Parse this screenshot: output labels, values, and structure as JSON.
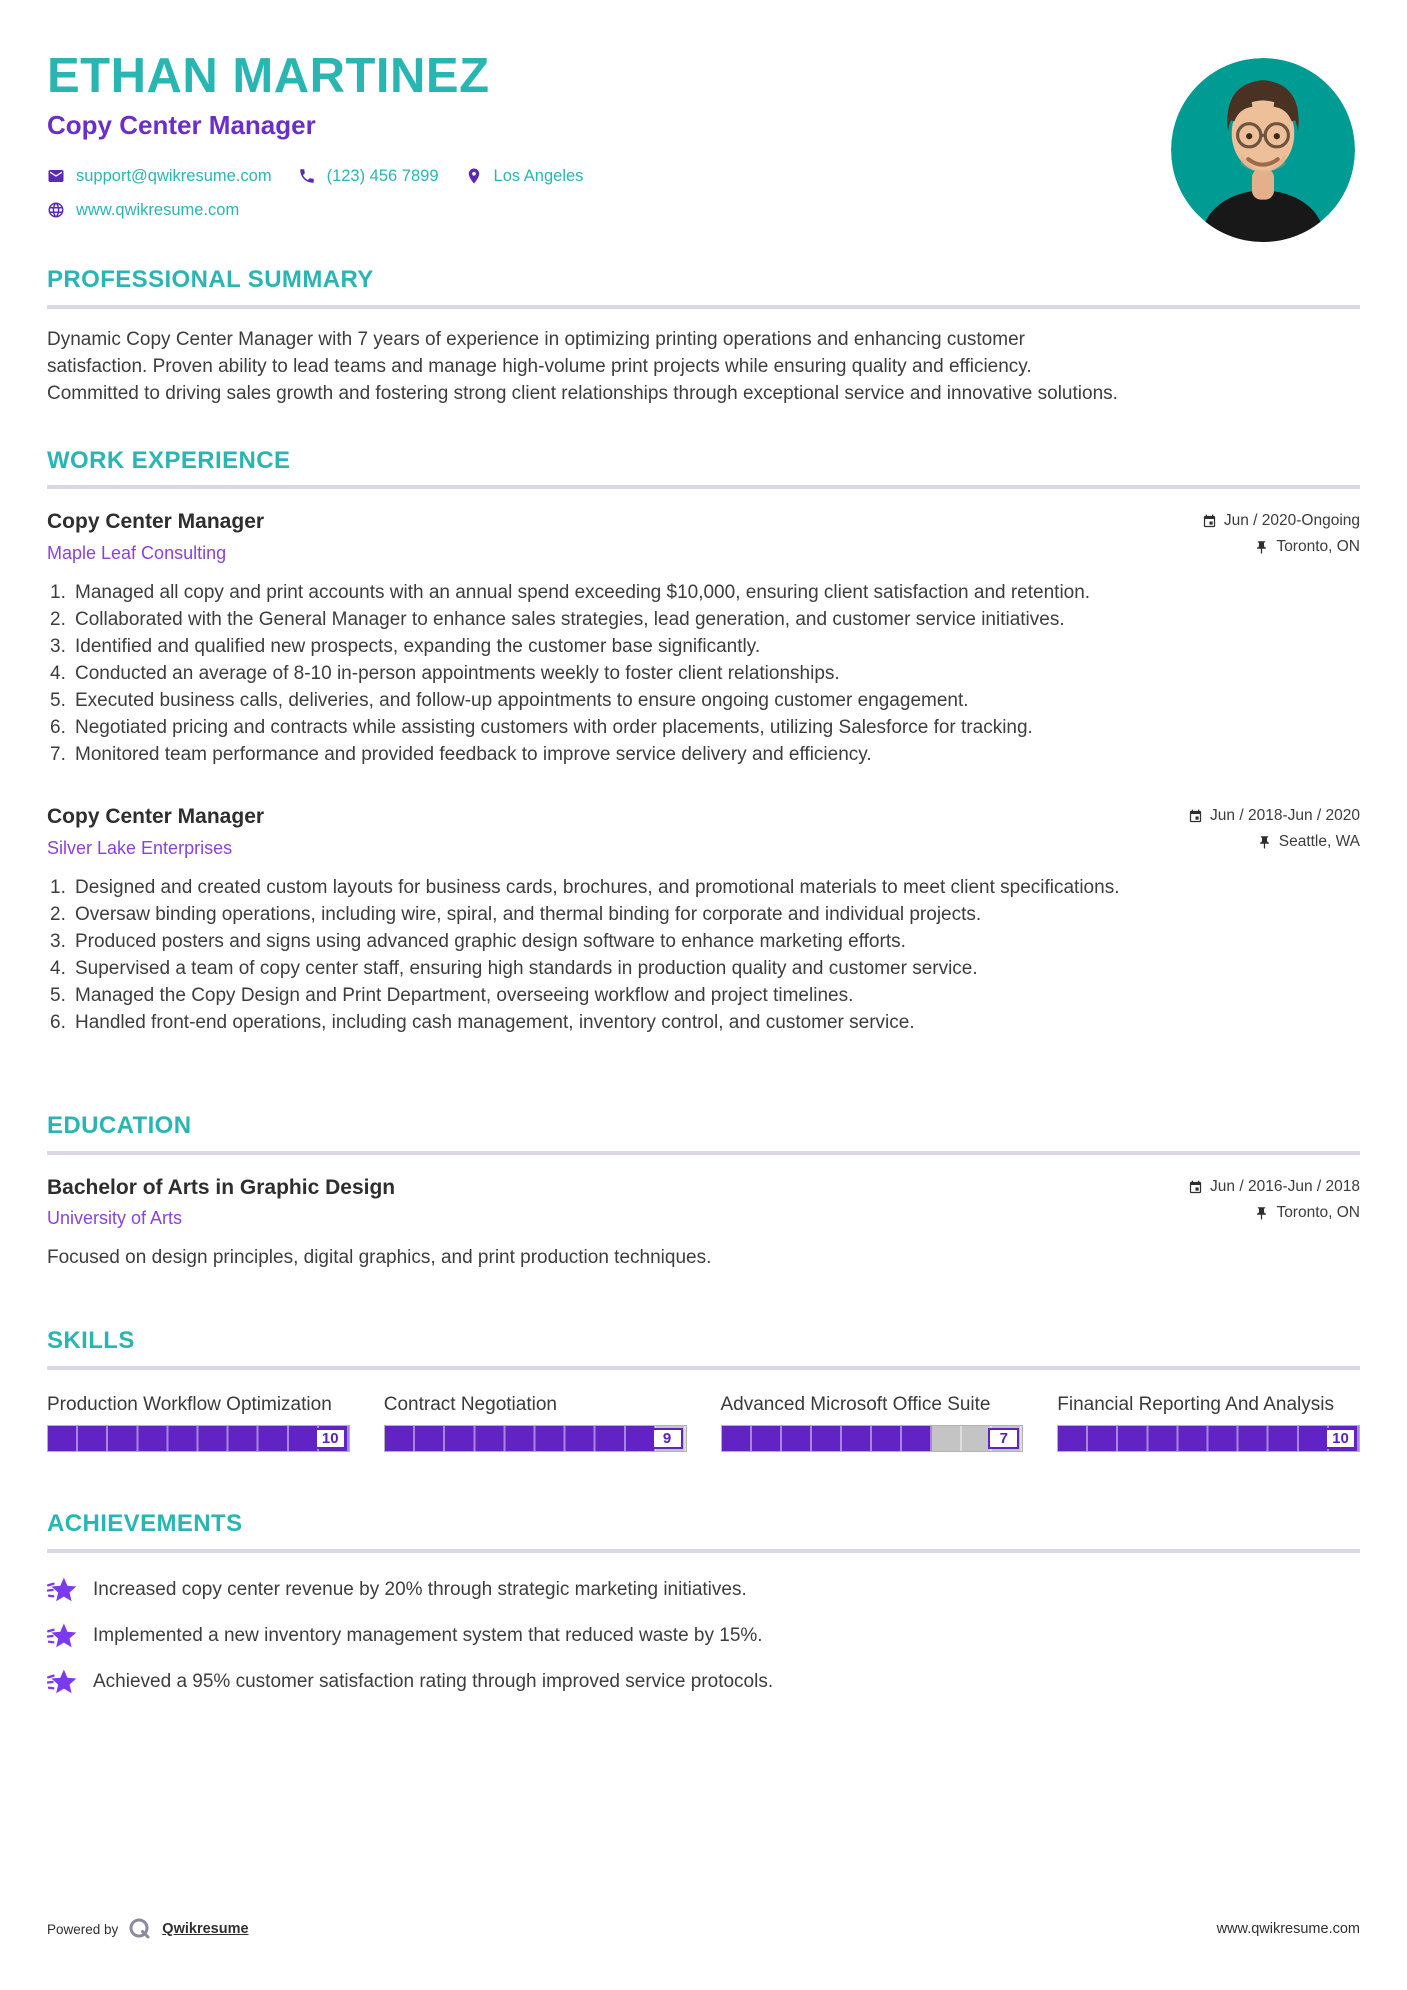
{
  "header": {
    "name": "ETHAN MARTINEZ",
    "title": "Copy Center Manager",
    "contact": {
      "email": "support@qwikresume.com",
      "phone": "(123) 456 7899",
      "location": "Los Angeles",
      "website": "www.qwikresume.com"
    }
  },
  "sections": {
    "summary": {
      "heading": "PROFESSIONAL SUMMARY",
      "text": "Dynamic Copy Center Manager with 7 years of experience in optimizing printing operations and enhancing customer satisfaction. Proven ability to lead teams and manage high-volume print projects while ensuring quality and efficiency. Committed to driving sales growth and fostering strong client relationships through exceptional service and innovative solutions."
    },
    "work": {
      "heading": "WORK EXPERIENCE",
      "jobs": [
        {
          "title": "Copy Center Manager",
          "company": "Maple Leaf Consulting",
          "dates": "Jun / 2020-Ongoing",
          "location": "Toronto, ON",
          "bullets": [
            "Managed all copy and print accounts with an annual spend exceeding $10,000, ensuring client satisfaction and retention.",
            "Collaborated with the General Manager to enhance sales strategies, lead generation, and customer service initiatives.",
            "Identified and qualified new prospects, expanding the customer base significantly.",
            "Conducted an average of 8-10 in-person appointments weekly to foster client relationships.",
            "Executed business calls, deliveries, and follow-up appointments to ensure ongoing customer engagement.",
            "Negotiated pricing and contracts while assisting customers with order placements, utilizing Salesforce for tracking.",
            "Monitored team performance and provided feedback to improve service delivery and efficiency."
          ]
        },
        {
          "title": "Copy Center Manager",
          "company": "Silver Lake Enterprises",
          "dates": "Jun / 2018-Jun / 2020",
          "location": "Seattle, WA",
          "bullets": [
            "Designed and created custom layouts for business cards, brochures, and promotional materials to meet client specifications.",
            "Oversaw binding operations, including wire, spiral, and thermal binding for corporate and individual projects.",
            "Produced posters and signs using advanced graphic design software to enhance marketing efforts.",
            "Supervised a team of copy center staff, ensuring high standards in production quality and customer service.",
            "Managed the Copy Design and Print Department, overseeing workflow and project timelines.",
            "Handled front-end operations, including cash management, inventory control, and customer service."
          ]
        }
      ]
    },
    "education": {
      "heading": "EDUCATION",
      "degree": "Bachelor of Arts in Graphic Design",
      "school": "University of Arts",
      "dates": "Jun / 2016-Jun / 2018",
      "location": "Toronto, ON",
      "description": "Focused on design principles, digital graphics, and print production techniques."
    },
    "skills": {
      "heading": "SKILLS",
      "max_level": 10,
      "items": [
        {
          "name": "Production Workflow Optimization",
          "level": 10
        },
        {
          "name": "Contract Negotiation",
          "level": 9
        },
        {
          "name": "Advanced Microsoft Office Suite",
          "level": 7
        },
        {
          "name": "Financial Reporting And Analysis",
          "level": 10
        }
      ]
    },
    "achievements": {
      "heading": "ACHIEVEMENTS",
      "items": [
        "Increased copy center revenue by 20% through strategic marketing initiatives.",
        "Implemented a new inventory management system that reduced waste by 15%.",
        "Achieved a 95% customer satisfaction rating through improved service protocols."
      ]
    }
  },
  "footer": {
    "powered_by": "Powered by",
    "brand": "Qwikresume",
    "website": "www.qwikresume.com"
  },
  "icons": {
    "email": "envelope-icon",
    "phone": "phone-icon",
    "location": "location-pin-icon",
    "website": "globe-icon",
    "dates": "calendar-icon",
    "place": "pushpin-icon",
    "achievement": "shooting-star-icon",
    "brand_logo": "qwikresume-q-logo"
  },
  "colors": {
    "accent_teal": "#2bb5b2",
    "accent_purple": "#6b2fc7",
    "company_purple": "#8a43d8",
    "icon_purple": "#5b2ab5",
    "bar_purple": "#6123c4",
    "bar_track_gray": "#c4c4c4",
    "divider_lavender": "#dbd7e9",
    "body_text": "#3d3d3d",
    "star_purple": "#7c3aed",
    "avatar_background": "#009c94"
  }
}
